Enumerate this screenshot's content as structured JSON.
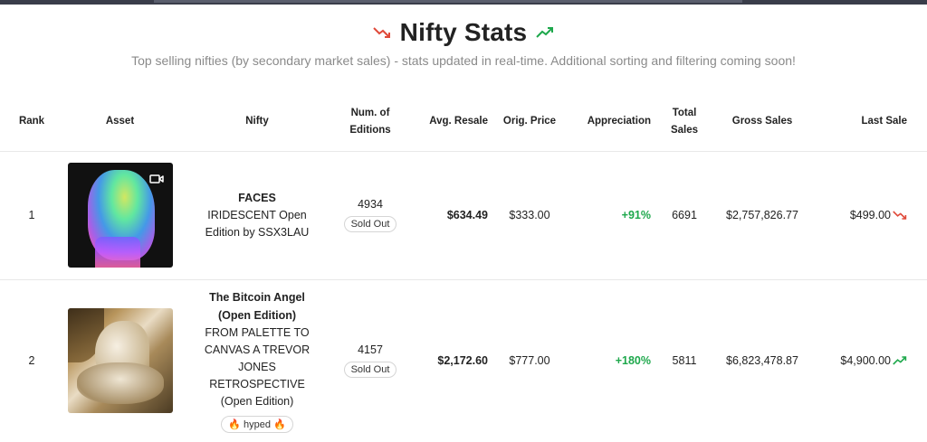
{
  "header": {
    "title": "Nifty Stats",
    "subtitle": "Top selling nifties (by secondary market sales) - stats updated in real-time. Additional sorting and filtering coming soon!",
    "down_color": "#e04a3a",
    "up_color": "#1ea84c"
  },
  "columns": {
    "rank": "Rank",
    "asset": "Asset",
    "nifty": "Nifty",
    "editions_l1": "Num. of",
    "editions_l2": "Editions",
    "avg_resale": "Avg. Resale",
    "orig_price": "Orig. Price",
    "appreciation": "Appreciation",
    "total_l1": "Total",
    "total_l2": "Sales",
    "gross_sales": "Gross Sales",
    "last_sale": "Last Sale"
  },
  "rows": [
    {
      "rank": "1",
      "asset_icon": "video-icon",
      "title": "FACES",
      "subtitle": "IRIDESCENT Open Edition by SSX3LAU",
      "editions": "4934",
      "status": "Sold Out",
      "avg_resale": "$634.49",
      "orig_price": "$333.00",
      "appreciation": "+91%",
      "total_sales": "6691",
      "gross_sales": "$2,757,826.77",
      "last_sale": "$499.00",
      "last_trend": "down"
    },
    {
      "rank": "2",
      "title_l1": "The Bitcoin Angel",
      "title_l2": "(Open Edition)",
      "sub_l1": "FROM PALETTE TO",
      "sub_l2": "CANVAS A TREVOR",
      "sub_l3": "JONES",
      "sub_l4": "RETROSPECTIVE",
      "sub_l5": "(Open Edition)",
      "tag": "hyped",
      "editions": "4157",
      "status": "Sold Out",
      "avg_resale": "$2,172.60",
      "orig_price": "$777.00",
      "appreciation": "+180%",
      "total_sales": "5811",
      "gross_sales": "$6,823,478.87",
      "last_sale": "$4,900.00",
      "last_trend": "up"
    }
  ]
}
